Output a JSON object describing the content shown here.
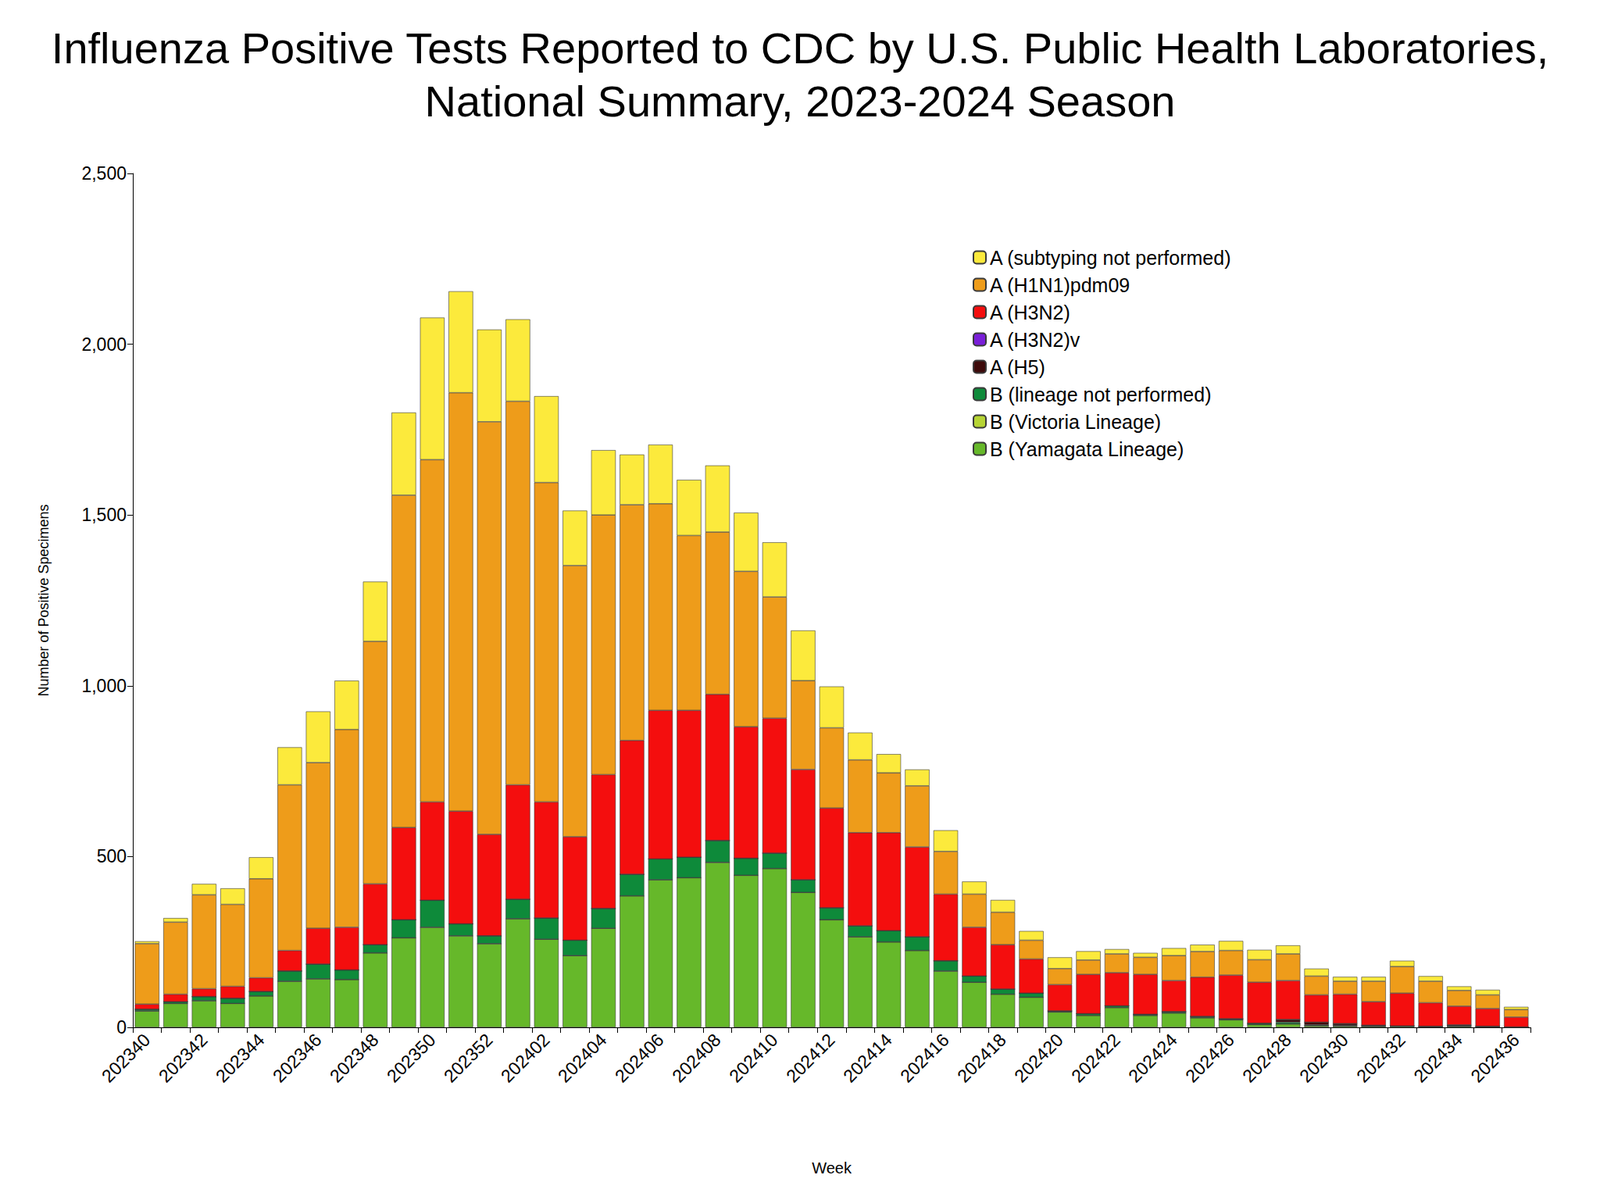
{
  "chart_data": {
    "type": "bar",
    "title": "Influenza Positive Tests Reported to CDC by U.S. Public Health Laboratories,\nNational Summary, 2023-2024 Season",
    "x_label": "Week",
    "y_label": "Number of Positive Specimens",
    "categories": [
      "202340",
      null,
      "202342",
      null,
      "202344",
      null,
      "202346",
      null,
      "202348",
      null,
      "202350",
      null,
      "202352",
      null,
      "202402",
      null,
      "202404",
      null,
      "202406",
      null,
      "202408",
      null,
      "202410",
      null,
      "202412",
      null,
      "202414",
      null,
      "202416",
      null,
      "202418",
      null,
      "202420",
      null,
      "202422",
      null,
      "202424",
      null,
      "202426",
      null,
      "202428",
      null,
      "202430",
      null,
      "202432",
      null,
      "202434",
      null,
      "202436"
    ],
    "series": [
      {
        "name": "A (subtyping not performed)",
        "color": "#fcea3c",
        "values": [
          7,
          12,
          32,
          47,
          63,
          110,
          150,
          143,
          175,
          242,
          416,
          297,
          270,
          240,
          253,
          161,
          190,
          147,
          173,
          163,
          195,
          172,
          160,
          147,
          121,
          80,
          55,
          48,
          62,
          37,
          36,
          27,
          33,
          26,
          14,
          13,
          22,
          20,
          28,
          29,
          25,
          22,
          13,
          13,
          17,
          15,
          12,
          15,
          8
        ]
      },
      {
        "name": "A (H1N1)pdm09",
        "color": "#ee9c1a",
        "values": [
          177,
          211,
          275,
          240,
          290,
          485,
          485,
          579,
          710,
          973,
          1002,
          1225,
          1208,
          1123,
          935,
          794,
          760,
          690,
          605,
          512,
          475,
          455,
          355,
          260,
          235,
          213,
          175,
          179,
          125,
          97,
          95,
          55,
          47,
          42,
          55,
          50,
          73,
          75,
          72,
          66,
          78,
          55,
          38,
          60,
          78,
          63,
          46,
          40,
          22
        ]
      },
      {
        "name": "A (H3N2)",
        "color": "#f40e0e",
        "values": [
          15,
          22,
          23,
          35,
          40,
          60,
          105,
          125,
          178,
          270,
          288,
          330,
          297,
          335,
          340,
          303,
          392,
          392,
          435,
          430,
          428,
          385,
          395,
          323,
          292,
          273,
          287,
          263,
          195,
          143,
          130,
          100,
          77,
          115,
          97,
          117,
          91,
          115,
          128,
          120,
          114,
          80,
          86,
          69,
          96,
          69,
          55,
          52,
          29
        ]
      },
      {
        "name": "A (H3N2)v",
        "color": "#7a1fd8",
        "values": [
          0,
          0,
          0,
          0,
          0,
          0,
          0,
          0,
          0,
          0,
          0,
          0,
          0,
          0,
          0,
          0,
          0,
          0,
          0,
          0,
          0,
          0,
          0,
          0,
          0,
          0,
          0,
          0,
          0,
          0,
          0,
          0,
          0,
          0,
          0,
          0,
          0,
          0,
          0,
          0,
          0,
          0,
          0,
          0,
          0,
          0,
          0,
          0,
          0
        ]
      },
      {
        "name": "A (H5)",
        "color": "#3d0a0a",
        "values": [
          0,
          0,
          0,
          0,
          0,
          0,
          0,
          0,
          0,
          0,
          0,
          0,
          0,
          0,
          0,
          0,
          0,
          0,
          0,
          0,
          0,
          0,
          0,
          0,
          0,
          0,
          0,
          0,
          0,
          0,
          0,
          0,
          0,
          0,
          0,
          0,
          0,
          0,
          0,
          0,
          8,
          8,
          5,
          2,
          0,
          0,
          3,
          0,
          0
        ]
      },
      {
        "name": "B (lineage not performed)",
        "color": "#0e8a3a",
        "values": [
          5,
          5,
          12,
          15,
          13,
          30,
          43,
          28,
          24,
          53,
          79,
          35,
          23,
          57,
          62,
          45,
          58,
          63,
          61,
          60,
          64,
          50,
          45,
          37,
          35,
          32,
          33,
          40,
          30,
          18,
          15,
          12,
          3,
          5,
          5,
          3,
          4,
          4,
          3,
          4,
          5,
          2,
          2,
          1,
          1,
          1,
          1,
          1,
          0
        ]
      },
      {
        "name": "B (Victoria Lineage)",
        "color": "#b6d434",
        "values": [
          0,
          0,
          0,
          0,
          0,
          0,
          0,
          0,
          0,
          0,
          0,
          0,
          0,
          0,
          0,
          0,
          0,
          0,
          0,
          0,
          0,
          0,
          0,
          0,
          0,
          0,
          0,
          0,
          0,
          0,
          0,
          0,
          0,
          0,
          0,
          0,
          0,
          0,
          0,
          0,
          0,
          0,
          0,
          0,
          0,
          0,
          0,
          0,
          0
        ]
      },
      {
        "name": "B (Yamagata Lineage)",
        "color": "#66b82a",
        "values": [
          48,
          70,
          78,
          70,
          92,
          135,
          142,
          140,
          218,
          262,
          293,
          268,
          245,
          318,
          258,
          210,
          290,
          385,
          432,
          438,
          483,
          445,
          465,
          395,
          315,
          265,
          250,
          225,
          165,
          132,
          97,
          88,
          45,
          35,
          58,
          35,
          42,
          28,
          22,
          8,
          10,
          5,
          4,
          3,
          3,
          2,
          3,
          2,
          1
        ]
      }
    ],
    "ylim": [
      0,
      2500
    ],
    "yticks": [
      0,
      500,
      {
        "value": 1000,
        "label": "1,000"
      },
      {
        "value": 1500,
        "label": "1,500"
      },
      {
        "value": 2000,
        "label": "2,000"
      },
      {
        "value": 2500,
        "label": "2,500"
      }
    ],
    "stacked": true,
    "grid": false,
    "legend": "upper right"
  }
}
